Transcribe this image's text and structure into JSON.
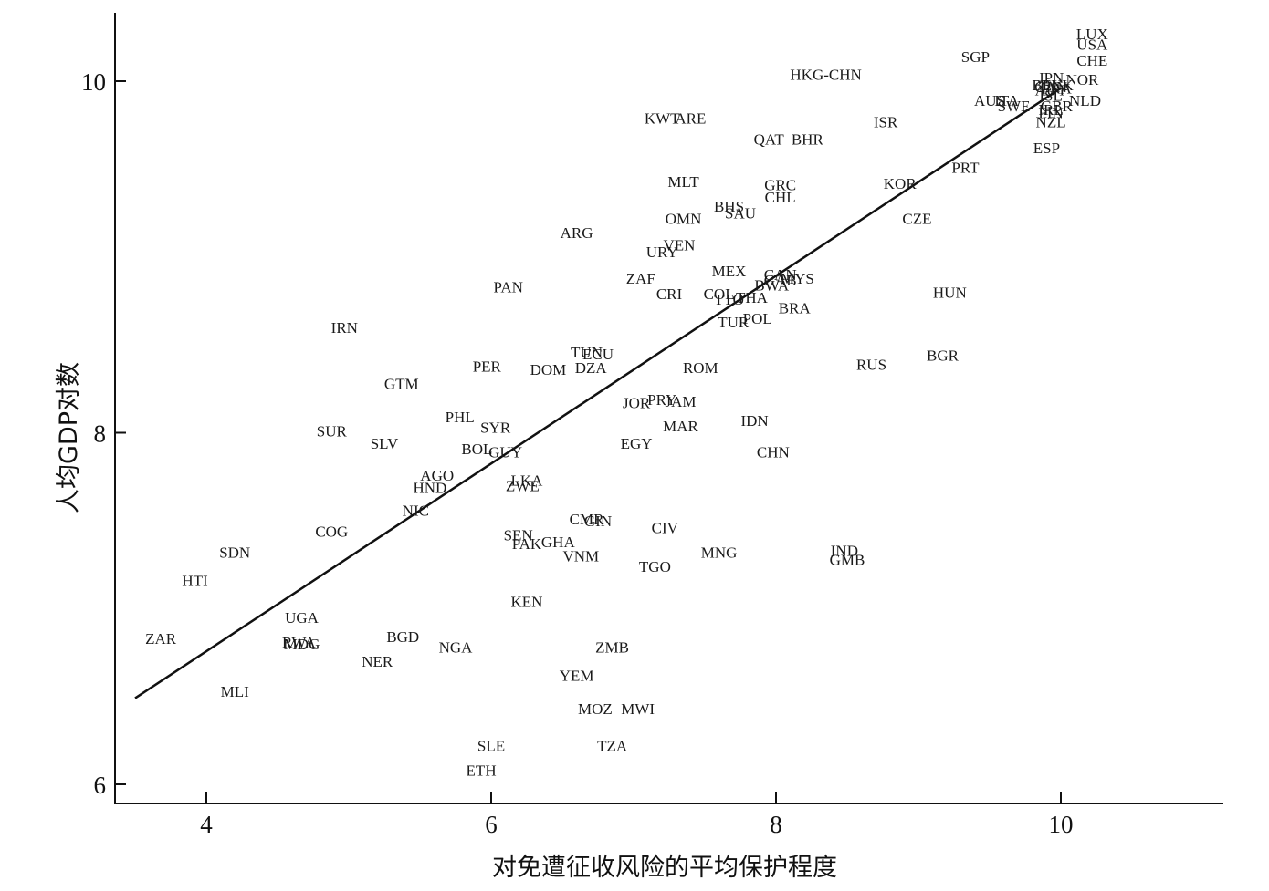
{
  "chart_data": {
    "type": "scatter",
    "title": "",
    "xlabel": "对免遭征收风险的平均保护程度",
    "ylabel": "人均GDP对数",
    "xlim": [
      3.35,
      11.2
    ],
    "ylim": [
      5.9,
      10.4
    ],
    "xticks": [
      4,
      6,
      8,
      10
    ],
    "yticks": [
      6,
      8,
      10
    ],
    "fit_line": {
      "x": [
        3.5,
        10
      ],
      "y": [
        6.49,
        9.96
      ]
    },
    "grid": false,
    "points": [
      {
        "label": "LUX",
        "x": 10.22,
        "y": 10.27
      },
      {
        "label": "USA",
        "x": 10.22,
        "y": 10.21
      },
      {
        "label": "CHE",
        "x": 10.22,
        "y": 10.12
      },
      {
        "label": "SGP",
        "x": 9.4,
        "y": 10.14
      },
      {
        "label": "JPN",
        "x": 9.93,
        "y": 10.02
      },
      {
        "label": "NOR",
        "x": 10.15,
        "y": 10.01
      },
      {
        "label": "BEL",
        "x": 9.9,
        "y": 9.98
      },
      {
        "label": "DNK",
        "x": 9.97,
        "y": 9.98
      },
      {
        "label": "FRA",
        "x": 9.97,
        "y": 9.96
      },
      {
        "label": "CAN",
        "x": 9.93,
        "y": 9.97
      },
      {
        "label": "AUT",
        "x": 9.93,
        "y": 9.95
      },
      {
        "label": "ISL",
        "x": 9.93,
        "y": 9.92
      },
      {
        "label": "NLD",
        "x": 10.17,
        "y": 9.89
      },
      {
        "label": "AUS",
        "x": 9.5,
        "y": 9.89
      },
      {
        "label": "ITA",
        "x": 9.62,
        "y": 9.89
      },
      {
        "label": "SWE",
        "x": 9.67,
        "y": 9.86
      },
      {
        "label": "GBR",
        "x": 9.97,
        "y": 9.86
      },
      {
        "label": "IRL",
        "x": 9.93,
        "y": 9.84
      },
      {
        "label": "FIN",
        "x": 9.93,
        "y": 9.82
      },
      {
        "label": "NZL",
        "x": 9.93,
        "y": 9.77
      },
      {
        "label": "ISR",
        "x": 8.77,
        "y": 9.77
      },
      {
        "label": "ESP",
        "x": 9.9,
        "y": 9.62
      },
      {
        "label": "HKG-CHN",
        "x": 8.35,
        "y": 10.04
      },
      {
        "label": "KWT",
        "x": 7.2,
        "y": 9.79
      },
      {
        "label": "ARE",
        "x": 7.4,
        "y": 9.79
      },
      {
        "label": "QAT",
        "x": 7.95,
        "y": 9.67
      },
      {
        "label": "BHR",
        "x": 8.22,
        "y": 9.67
      },
      {
        "label": "PRT",
        "x": 9.33,
        "y": 9.51
      },
      {
        "label": "MLT",
        "x": 7.35,
        "y": 9.43
      },
      {
        "label": "GRC",
        "x": 8.03,
        "y": 9.41
      },
      {
        "label": "KOR",
        "x": 8.87,
        "y": 9.42
      },
      {
        "label": "CHL",
        "x": 8.03,
        "y": 9.34
      },
      {
        "label": "BHS",
        "x": 7.67,
        "y": 9.29
      },
      {
        "label": "SAU",
        "x": 7.75,
        "y": 9.25
      },
      {
        "label": "OMN",
        "x": 7.35,
        "y": 9.22
      },
      {
        "label": "CZE",
        "x": 8.99,
        "y": 9.22
      },
      {
        "label": "ARG",
        "x": 6.6,
        "y": 9.14
      },
      {
        "label": "VEN",
        "x": 7.32,
        "y": 9.07
      },
      {
        "label": "URY",
        "x": 7.2,
        "y": 9.03
      },
      {
        "label": "MEX",
        "x": 7.67,
        "y": 8.92
      },
      {
        "label": "CAN",
        "x": 8.03,
        "y": 8.9
      },
      {
        "label": "MYS",
        "x": 8.15,
        "y": 8.88
      },
      {
        "label": "ZAF",
        "x": 7.05,
        "y": 8.88
      },
      {
        "label": "GAB",
        "x": 8.03,
        "y": 8.87
      },
      {
        "label": "BWA",
        "x": 7.97,
        "y": 8.84
      },
      {
        "label": "PAN",
        "x": 6.12,
        "y": 8.83
      },
      {
        "label": "COL",
        "x": 7.6,
        "y": 8.79
      },
      {
        "label": "CRI",
        "x": 7.25,
        "y": 8.79
      },
      {
        "label": "TTO",
        "x": 7.67,
        "y": 8.76
      },
      {
        "label": "THA",
        "x": 7.83,
        "y": 8.77
      },
      {
        "label": "HUN",
        "x": 9.22,
        "y": 8.8
      },
      {
        "label": "BRA",
        "x": 8.13,
        "y": 8.71
      },
      {
        "label": "POL",
        "x": 7.87,
        "y": 8.65
      },
      {
        "label": "TUR",
        "x": 7.7,
        "y": 8.63
      },
      {
        "label": "IRN",
        "x": 4.97,
        "y": 8.6
      },
      {
        "label": "TUN",
        "x": 6.67,
        "y": 8.46
      },
      {
        "label": "ECU",
        "x": 6.75,
        "y": 8.45
      },
      {
        "label": "BGR",
        "x": 9.17,
        "y": 8.44
      },
      {
        "label": "RUS",
        "x": 8.67,
        "y": 8.39
      },
      {
        "label": "PER",
        "x": 5.97,
        "y": 8.38
      },
      {
        "label": "DZA",
        "x": 6.7,
        "y": 8.37
      },
      {
        "label": "ROM",
        "x": 7.47,
        "y": 8.37
      },
      {
        "label": "DOM",
        "x": 6.4,
        "y": 8.36
      },
      {
        "label": "GTM",
        "x": 5.37,
        "y": 8.28
      },
      {
        "label": "PRY",
        "x": 7.2,
        "y": 8.19
      },
      {
        "label": "JAM",
        "x": 7.33,
        "y": 8.18
      },
      {
        "label": "JOR",
        "x": 7.02,
        "y": 8.17
      },
      {
        "label": "PHL",
        "x": 5.78,
        "y": 8.09
      },
      {
        "label": "IDN",
        "x": 7.85,
        "y": 8.07
      },
      {
        "label": "MAR",
        "x": 7.33,
        "y": 8.04
      },
      {
        "label": "SYR",
        "x": 6.03,
        "y": 8.03
      },
      {
        "label": "SUR",
        "x": 4.88,
        "y": 8.01
      },
      {
        "label": "EGY",
        "x": 7.02,
        "y": 7.94
      },
      {
        "label": "SLV",
        "x": 5.25,
        "y": 7.94
      },
      {
        "label": "BOL",
        "x": 5.9,
        "y": 7.91
      },
      {
        "label": "GUY",
        "x": 6.1,
        "y": 7.89
      },
      {
        "label": "CHN",
        "x": 7.98,
        "y": 7.89
      },
      {
        "label": "AGO",
        "x": 5.62,
        "y": 7.76
      },
      {
        "label": "LKA",
        "x": 6.25,
        "y": 7.73
      },
      {
        "label": "ZWE",
        "x": 6.22,
        "y": 7.7
      },
      {
        "label": "HND",
        "x": 5.57,
        "y": 7.69
      },
      {
        "label": "NIC",
        "x": 5.47,
        "y": 7.56
      },
      {
        "label": "CMR",
        "x": 6.67,
        "y": 7.51
      },
      {
        "label": "GIN",
        "x": 6.75,
        "y": 7.5
      },
      {
        "label": "CIV",
        "x": 7.22,
        "y": 7.46
      },
      {
        "label": "COG",
        "x": 4.88,
        "y": 7.44
      },
      {
        "label": "SEN",
        "x": 6.19,
        "y": 7.42
      },
      {
        "label": "PAK",
        "x": 6.25,
        "y": 7.37
      },
      {
        "label": "GHA",
        "x": 6.47,
        "y": 7.38
      },
      {
        "label": "SDN",
        "x": 4.2,
        "y": 7.32
      },
      {
        "label": "IND",
        "x": 8.48,
        "y": 7.33
      },
      {
        "label": "MNG",
        "x": 7.6,
        "y": 7.32
      },
      {
        "label": "VNM",
        "x": 6.63,
        "y": 7.3
      },
      {
        "label": "GMB",
        "x": 8.5,
        "y": 7.28
      },
      {
        "label": "TGO",
        "x": 7.15,
        "y": 7.24
      },
      {
        "label": "HTI",
        "x": 3.92,
        "y": 7.16
      },
      {
        "label": "KEN",
        "x": 6.25,
        "y": 7.04
      },
      {
        "label": "UGA",
        "x": 4.67,
        "y": 6.95
      },
      {
        "label": "ZAR",
        "x": 3.68,
        "y": 6.83
      },
      {
        "label": "BGD",
        "x": 5.38,
        "y": 6.84
      },
      {
        "label": "RWA",
        "x": 4.65,
        "y": 6.81
      },
      {
        "label": "MDG",
        "x": 4.67,
        "y": 6.8
      },
      {
        "label": "NGA",
        "x": 5.75,
        "y": 6.78
      },
      {
        "label": "ZMB",
        "x": 6.85,
        "y": 6.78
      },
      {
        "label": "NER",
        "x": 5.2,
        "y": 6.7
      },
      {
        "label": "YEM",
        "x": 6.6,
        "y": 6.62
      },
      {
        "label": "MLI",
        "x": 4.2,
        "y": 6.53
      },
      {
        "label": "MOZ",
        "x": 6.73,
        "y": 6.43
      },
      {
        "label": "MWI",
        "x": 7.03,
        "y": 6.43
      },
      {
        "label": "SLE",
        "x": 6.0,
        "y": 6.22
      },
      {
        "label": "TZA",
        "x": 6.85,
        "y": 6.22
      },
      {
        "label": "ETH",
        "x": 5.93,
        "y": 6.08
      }
    ]
  }
}
